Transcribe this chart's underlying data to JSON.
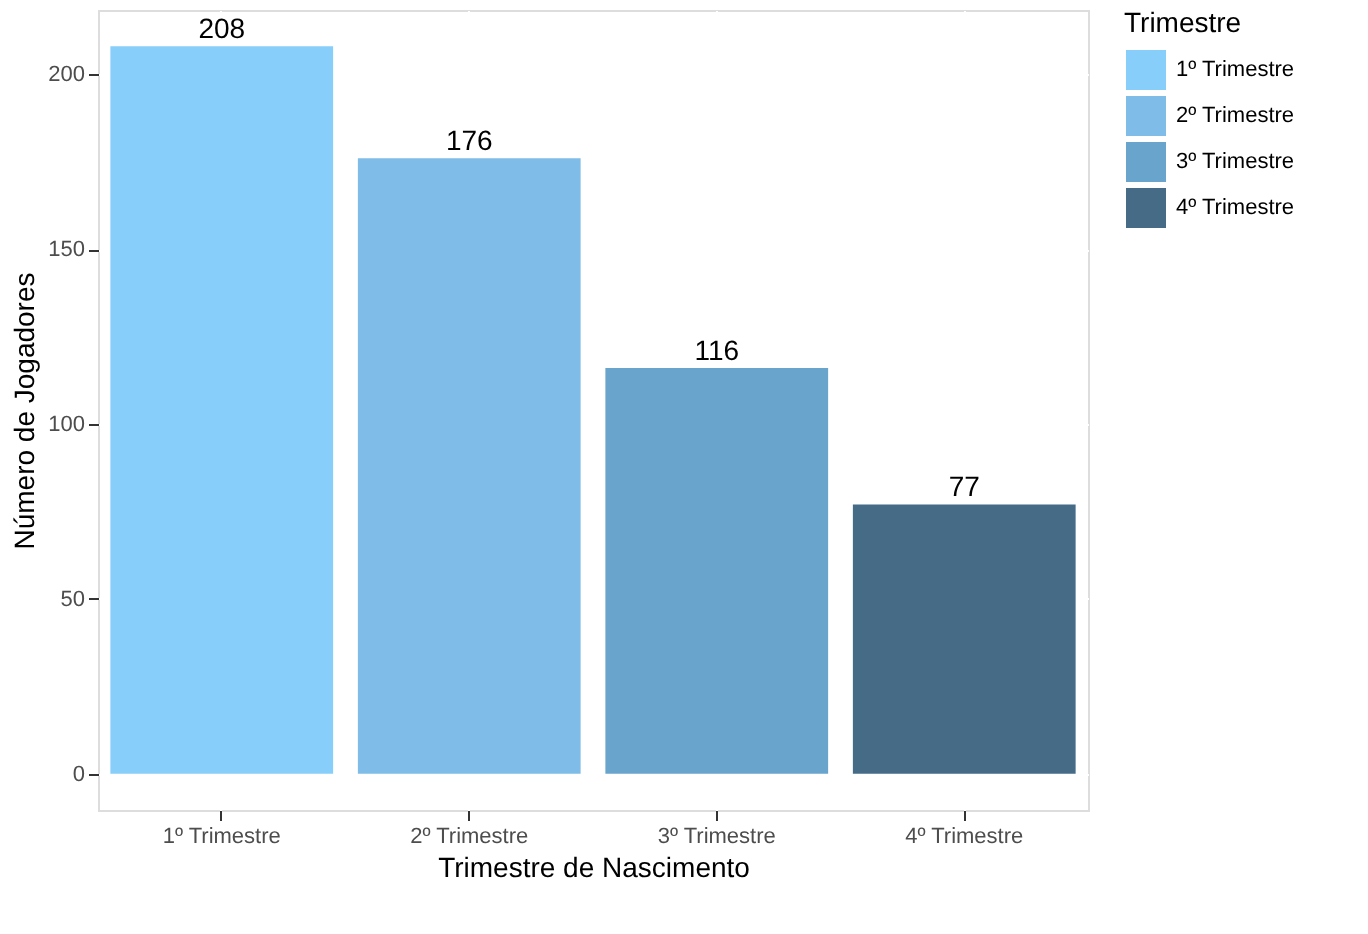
{
  "chart_data": {
    "type": "bar",
    "xlabel": "Trimestre de Nascimento",
    "ylabel": "Número de Jogadores",
    "legend_title": "Trimestre",
    "categories": [
      "1º Trimestre",
      "2º Trimestre",
      "3º Trimestre",
      "4º Trimestre"
    ],
    "series": [
      {
        "name": "1º Trimestre",
        "color": "#87cefa",
        "values": [
          208,
          null,
          null,
          null
        ]
      },
      {
        "name": "2º Trimestre",
        "color": "#7fbce8",
        "values": [
          null,
          176,
          null,
          null
        ]
      },
      {
        "name": "3º Trimestre",
        "color": "#68a4cc",
        "values": [
          null,
          null,
          116,
          null
        ]
      },
      {
        "name": "4º Trimestre",
        "color": "#456b87",
        "values": [
          null,
          null,
          null,
          77
        ]
      }
    ],
    "ylim": [
      -10.4,
      218.4
    ],
    "yticks": [
      0,
      50,
      100,
      150,
      200
    ],
    "grid": true,
    "legend": "right",
    "data_labels": true
  }
}
